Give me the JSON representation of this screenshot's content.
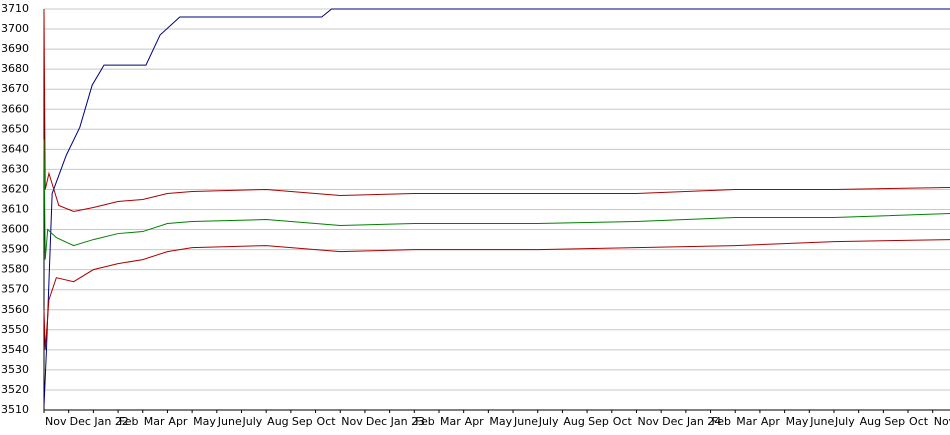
{
  "chart_data": {
    "type": "line",
    "xlim": [
      0,
      36.7
    ],
    "xticks": [
      {
        "value": 0,
        "label": "Nov"
      },
      {
        "value": 1,
        "label": "Dec"
      },
      {
        "value": 2,
        "label": "Jan 22"
      },
      {
        "value": 3,
        "label": "Feb"
      },
      {
        "value": 4,
        "label": "Mar"
      },
      {
        "value": 5,
        "label": "Apr"
      },
      {
        "value": 6,
        "label": "May"
      },
      {
        "value": 7,
        "label": "June"
      },
      {
        "value": 8,
        "label": "July"
      },
      {
        "value": 9,
        "label": "Aug"
      },
      {
        "value": 10,
        "label": "Sep"
      },
      {
        "value": 11,
        "label": "Oct"
      },
      {
        "value": 12,
        "label": "Nov"
      },
      {
        "value": 13,
        "label": "Dec"
      },
      {
        "value": 14,
        "label": "Jan 23"
      },
      {
        "value": 15,
        "label": "Feb"
      },
      {
        "value": 16,
        "label": "Mar"
      },
      {
        "value": 17,
        "label": "Apr"
      },
      {
        "value": 18,
        "label": "May"
      },
      {
        "value": 19,
        "label": "June"
      },
      {
        "value": 20,
        "label": "July"
      },
      {
        "value": 21,
        "label": "Aug"
      },
      {
        "value": 22,
        "label": "Sep"
      },
      {
        "value": 23,
        "label": "Oct"
      },
      {
        "value": 24,
        "label": "Nov"
      },
      {
        "value": 25,
        "label": "Dec"
      },
      {
        "value": 26,
        "label": "Jan 24"
      },
      {
        "value": 27,
        "label": "Feb"
      },
      {
        "value": 28,
        "label": "Mar"
      },
      {
        "value": 29,
        "label": "Apr"
      },
      {
        "value": 30,
        "label": "May"
      },
      {
        "value": 31,
        "label": "June"
      },
      {
        "value": 32,
        "label": "July"
      },
      {
        "value": 33,
        "label": "Aug"
      },
      {
        "value": 34,
        "label": "Sep"
      },
      {
        "value": 35,
        "label": "Oct"
      },
      {
        "value": 36,
        "label": "Nov"
      }
    ],
    "ylim": [
      3510,
      3710
    ],
    "yticks": [
      3510,
      3520,
      3530,
      3540,
      3550,
      3560,
      3570,
      3580,
      3590,
      3600,
      3610,
      3620,
      3630,
      3640,
      3650,
      3660,
      3670,
      3680,
      3690,
      3700,
      3710
    ],
    "grid": true,
    "series": [
      {
        "color": "#000080",
        "x": [
          0,
          0.1,
          0.33,
          0.9,
          1.45,
          1.95,
          2.43,
          4.13,
          4.7,
          5.5,
          11.25,
          11.65,
          36.7
        ],
        "values": [
          3512,
          3540,
          3618,
          3637,
          3651,
          3672,
          3682,
          3682,
          3697,
          3706,
          3706,
          3710,
          3710
        ]
      },
      {
        "color": "#aa0000",
        "x": [
          0,
          0.05,
          0.2,
          0.6,
          1.2,
          2,
          3,
          4,
          5,
          6,
          9,
          11,
          12,
          15,
          24,
          28,
          32,
          36.7
        ],
        "values": [
          3710,
          3620,
          3628,
          3612,
          3609,
          3611,
          3614,
          3615,
          3618,
          3619,
          3620,
          3618,
          3617,
          3618,
          3618,
          3620,
          3620,
          3621
        ]
      },
      {
        "color": "#008000",
        "x": [
          0,
          0.05,
          0.15,
          0.5,
          1.2,
          2,
          3,
          4,
          5,
          6,
          9,
          11,
          12,
          15,
          20,
          24,
          28,
          32,
          36.7
        ],
        "values": [
          3645,
          3585,
          3600,
          3596,
          3592,
          3595,
          3598,
          3599,
          3603,
          3604,
          3605,
          3603,
          3602,
          3603,
          3603,
          3604,
          3606,
          3606,
          3608
        ]
      },
      {
        "color": "#aa0000",
        "x": [
          0,
          0.05,
          0.2,
          0.5,
          1.2,
          2,
          3,
          4,
          5,
          6,
          9,
          11,
          12,
          15,
          20,
          24,
          28,
          32,
          36.7
        ],
        "values": [
          3560,
          3540,
          3565,
          3576,
          3574,
          3580,
          3583,
          3585,
          3589,
          3591,
          3592,
          3590,
          3589,
          3590,
          3590,
          3591,
          3592,
          3594,
          3595
        ]
      }
    ]
  }
}
